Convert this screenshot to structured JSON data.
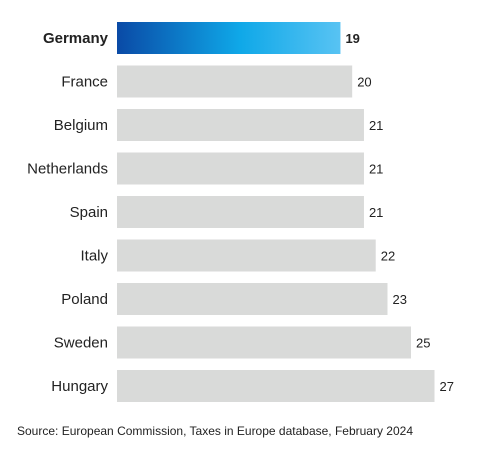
{
  "chart_data": {
    "type": "bar",
    "orientation": "horizontal",
    "categories": [
      "Germany",
      "France",
      "Belgium",
      "Netherlands",
      "Spain",
      "Italy",
      "Poland",
      "Sweden",
      "Hungary"
    ],
    "values": [
      19,
      20,
      21,
      21,
      21,
      22,
      23,
      25,
      27
    ],
    "highlight": "Germany",
    "xlim": [
      0,
      27
    ],
    "grid": false,
    "legend": "none"
  },
  "colors": {
    "default_bar": "#d9dad9",
    "highlight_start": "#0a4aa6",
    "highlight_mid": "#0fa8e8",
    "highlight_end": "#58c3f3"
  },
  "source": "Source: European Commission, Taxes in Europe database, February 2024"
}
